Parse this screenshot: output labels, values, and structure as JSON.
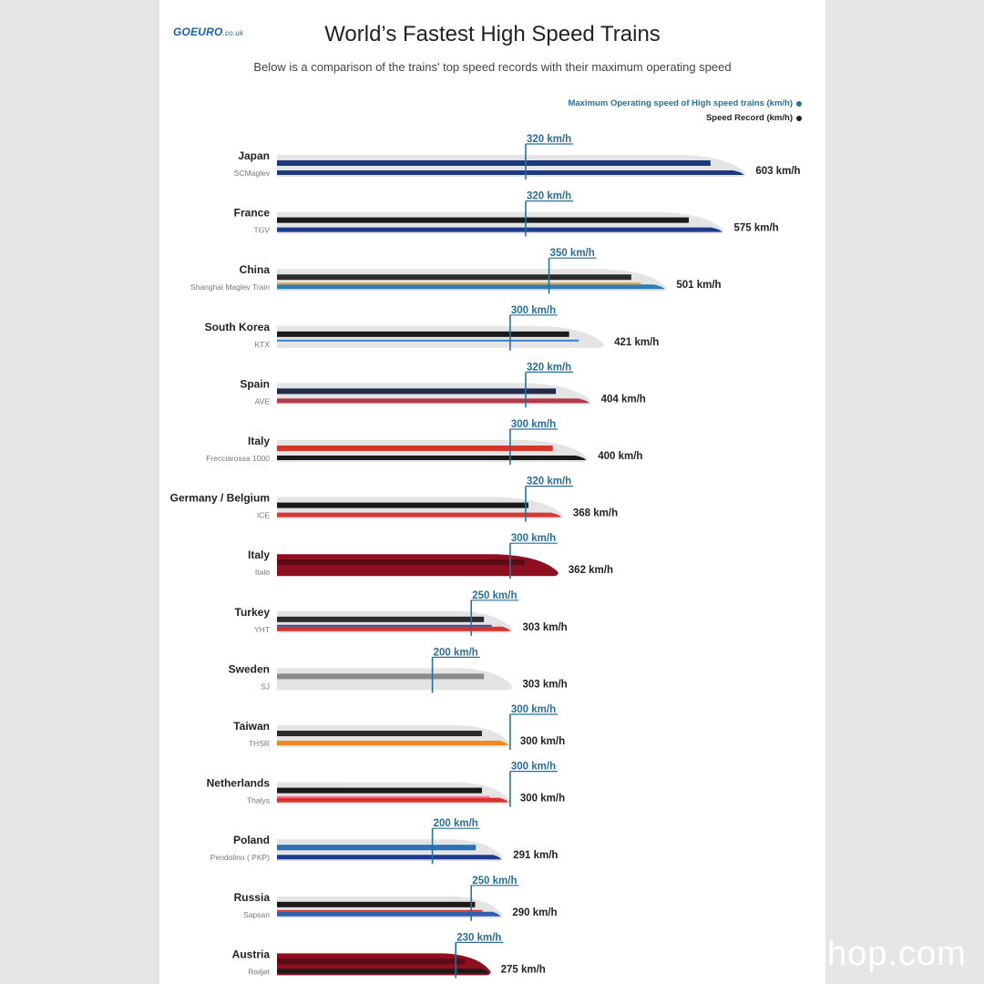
{
  "header": {
    "logo_main": "GOEURO",
    "logo_tld": ".co.uk",
    "title": "World’s Fastest High Speed Trains",
    "subtitle": "Below is a comparison of the trains' top speed records with their maximum operating speed"
  },
  "legend": {
    "operating": "Maximum Operating speed of High speed trains (km/h)",
    "record": "Speed Record (km/h)"
  },
  "watermark": "hop.com",
  "colors": {
    "operating": "#2a6f97",
    "record": "#222222",
    "train_body": "#e3e3e3"
  },
  "chart_data": {
    "type": "bar",
    "categories": [
      "Japan",
      "France",
      "China",
      "South Korea",
      "Spain",
      "Italy",
      "Germany / Belgium",
      "Italy",
      "Turkey",
      "Sweden",
      "Taiwan",
      "Netherlands",
      "Poland",
      "Russia",
      "Austria"
    ],
    "train_names": [
      "SCMaglev",
      "TGV",
      "Shanghai Maglev Train",
      "KTX",
      "AVE",
      "Frecciarossa 1000",
      "ICE",
      "Italo",
      "YHT",
      "SJ",
      "THSR",
      "Thalys",
      "Pendolino ( PKP)",
      "Sapsan",
      "Railjet"
    ],
    "series": [
      {
        "name": "Speed Record (km/h)",
        "values": [
          603,
          575,
          501,
          421,
          404,
          400,
          368,
          362,
          303,
          303,
          300,
          300,
          291,
          290,
          275
        ]
      },
      {
        "name": "Maximum Operating speed of High speed trains (km/h)",
        "values": [
          320,
          320,
          350,
          300,
          320,
          300,
          320,
          300,
          250,
          200,
          300,
          300,
          200,
          250,
          230
        ]
      }
    ],
    "record_labels": [
      "603 km/h",
      "575 km/h",
      "501 km/h",
      "421 km/h",
      "404 km/h",
      "400 km/h",
      "368 km/h",
      "362 km/h",
      "303 km/h",
      "303 km/h",
      "300 km/h",
      "300 km/h",
      "291 km/h",
      "290 km/h",
      "275 km/h"
    ],
    "operating_labels": [
      "320 km/h",
      "320 km/h",
      "350 km/h",
      "300 km/h",
      "320 km/h",
      "300 km/h",
      "320 km/h",
      "300 km/h",
      "250 km/h",
      "200 km/h",
      "300 km/h",
      "300 km/h",
      "200 km/h",
      "250 km/h",
      "230 km/h"
    ],
    "livery": [
      {
        "base": "#e4e4e4",
        "stripe": "#1e3a78",
        "band": "#1e3a78",
        "accent": ""
      },
      {
        "base": "#e4e4e4",
        "stripe": "#1a1a1a",
        "band": "#1d3b8f",
        "accent": ""
      },
      {
        "base": "#e4e4e4",
        "stripe": "#2b2b2b",
        "band": "#2c7fb8",
        "accent": "#e6a23c"
      },
      {
        "base": "#e4e4e4",
        "stripe": "#1a1a1a",
        "band": "#e4e4e4",
        "accent": "#2f7fd0"
      },
      {
        "base": "#e4e4e4",
        "stripe": "#1f2a4a",
        "band": "#b33a4a",
        "accent": ""
      },
      {
        "base": "#e4e4e4",
        "stripe": "#d8342b",
        "band": "#1a1a1a",
        "accent": ""
      },
      {
        "base": "#e4e4e4",
        "stripe": "#1a1a1a",
        "band": "#d33b3b",
        "accent": ""
      },
      {
        "base": "#8e1020",
        "stripe": "#5a0a14",
        "band": "#8e1020",
        "accent": ""
      },
      {
        "base": "#e4e4e4",
        "stripe": "#2b2b2b",
        "band": "#d8342b",
        "accent": "#3a4aa0"
      },
      {
        "base": "#e4e4e4",
        "stripe": "#8a8a8a",
        "band": "#e4e4e4",
        "accent": ""
      },
      {
        "base": "#e4e4e4",
        "stripe": "#2b2b2b",
        "band": "#f08a1e",
        "accent": ""
      },
      {
        "base": "#e4e4e4",
        "stripe": "#1a1a1a",
        "band": "#d8342b",
        "accent": "#f07aa0"
      },
      {
        "base": "#e4e4e4",
        "stripe": "#2f6fb0",
        "band": "#1d3b8f",
        "accent": ""
      },
      {
        "base": "#e4e4e4",
        "stripe": "#1a1a1a",
        "band": "#2f5fb0",
        "accent": "#d8342b"
      },
      {
        "base": "#8e1020",
        "stripe": "#5a0a14",
        "band": "#1a1a1a",
        "accent": ""
      }
    ]
  }
}
